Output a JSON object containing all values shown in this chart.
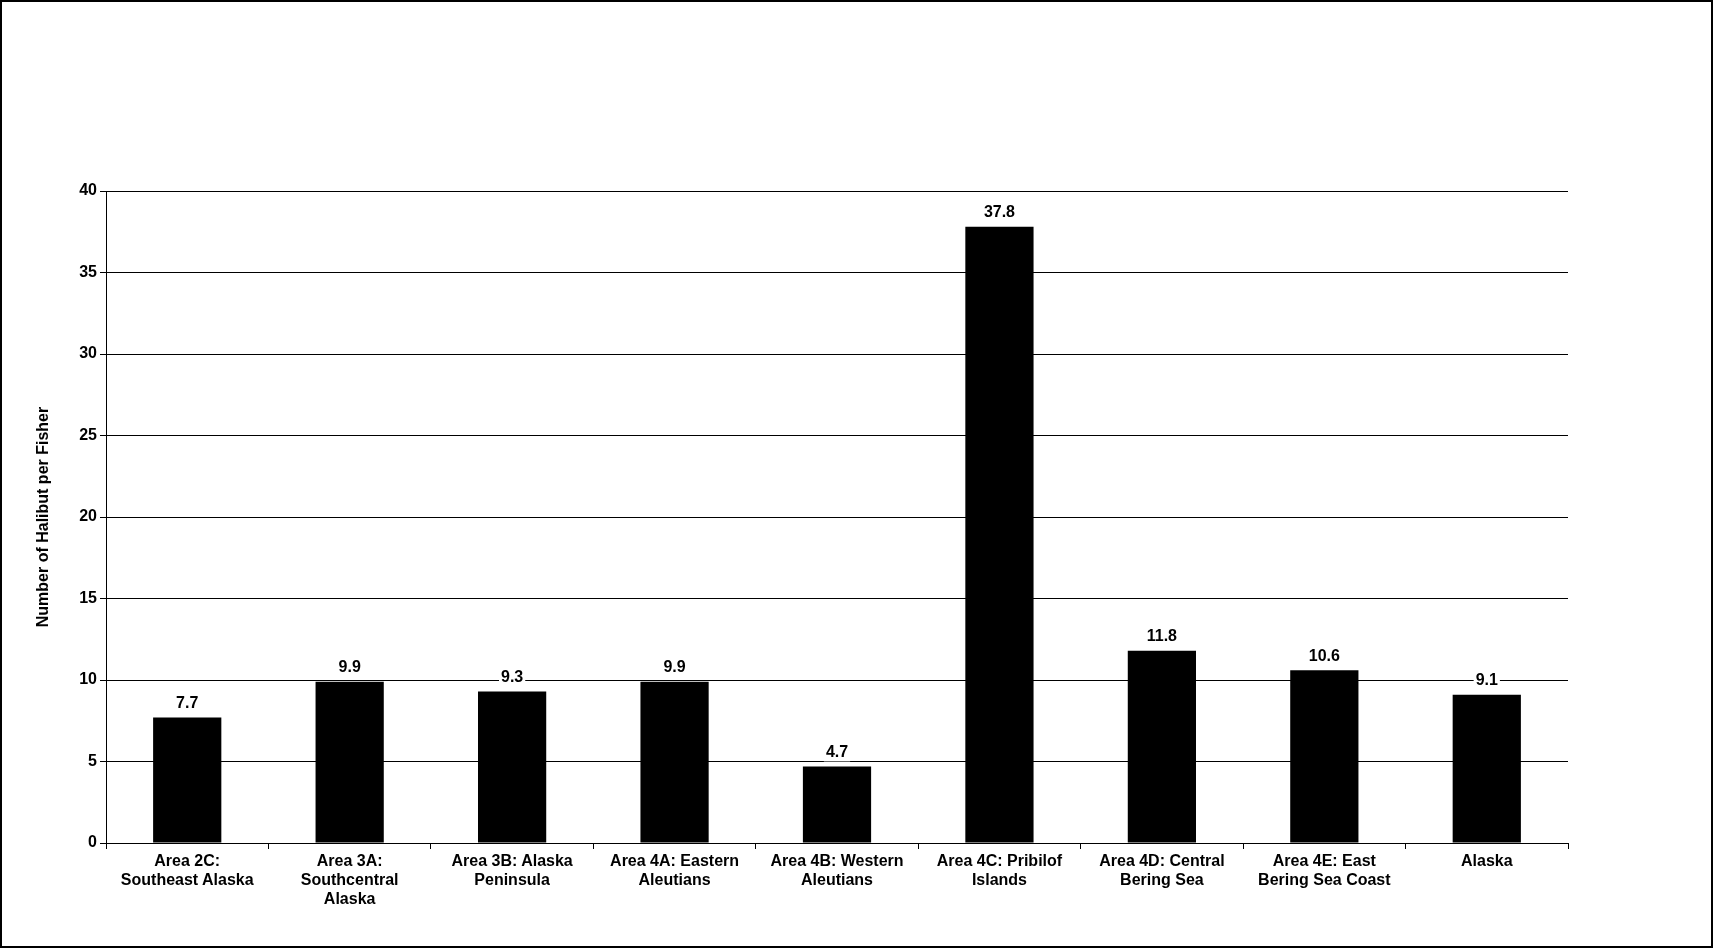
{
  "chart_data": {
    "type": "bar",
    "ylabel": "Number of Halibut per Fisher",
    "categories": [
      "Area 2C: Southeast Alaska",
      "Area 3A: Southcentral Alaska",
      "Area 3B: Alaska Peninsula",
      "Area 4A: Eastern Aleutians",
      "Area 4B: Western Aleutians",
      "Area 4C: Pribilof Islands",
      "Area 4D: Central Bering Sea",
      "Area 4E: East Bering Sea Coast",
      "Alaska"
    ],
    "values": [
      7.7,
      9.9,
      9.3,
      9.9,
      4.7,
      37.8,
      11.8,
      10.6,
      9.1
    ],
    "color": "#000000",
    "ylim": [
      0,
      40
    ],
    "yticks": [
      0,
      5,
      10,
      15,
      20,
      25,
      30,
      35,
      40
    ],
    "grid": "y",
    "data_labels": true
  }
}
